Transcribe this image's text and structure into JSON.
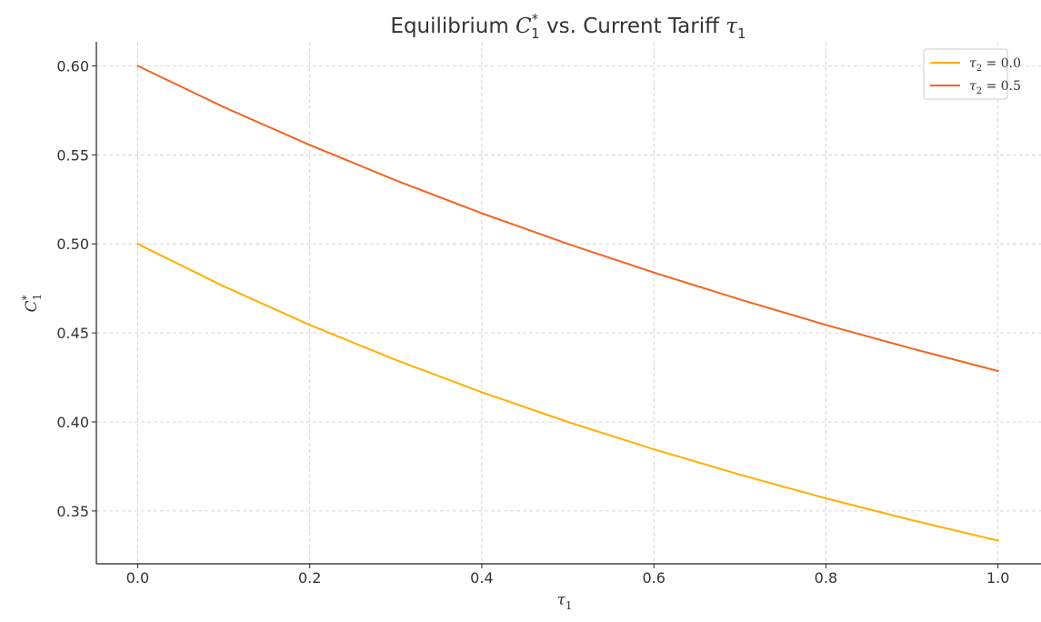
{
  "chart_data": {
    "type": "line",
    "title": {
      "prefix": "Equilibrium ",
      "c_var": "C",
      "c_sup": "*",
      "c_sub": "1",
      "middle": " vs. Current Tariff ",
      "tau_var": "τ",
      "tau_sub": "1"
    },
    "xlabel": {
      "var": "τ",
      "sub": "1"
    },
    "ylabel": {
      "var": "C",
      "sup": "*",
      "sub": "1"
    },
    "xlim": [
      -0.048,
      1.05
    ],
    "ylim": [
      0.3203,
      0.6135
    ],
    "x_ticks": [
      0.0,
      0.2,
      0.4,
      0.6,
      0.8,
      1.0
    ],
    "x_tick_labels": [
      "0.0",
      "0.2",
      "0.4",
      "0.6",
      "0.8",
      "1.0"
    ],
    "y_ticks": [
      0.35,
      0.4,
      0.45,
      0.5,
      0.55,
      0.6
    ],
    "y_tick_labels": [
      "0.35",
      "0.40",
      "0.45",
      "0.50",
      "0.55",
      "0.60"
    ],
    "grid": true,
    "legend_position": "top-right",
    "x": [
      0.0,
      0.1,
      0.2,
      0.3,
      0.4,
      0.5,
      0.6,
      0.7,
      0.8,
      0.9,
      1.0
    ],
    "series": [
      {
        "legend": {
          "var": "τ",
          "sub": "2",
          "rest": " = 0.0"
        },
        "color": "#FFB000",
        "values": [
          0.5,
          0.4762,
          0.4545,
          0.4348,
          0.4167,
          0.4,
          0.3846,
          0.3704,
          0.3571,
          0.3448,
          0.3333
        ]
      },
      {
        "legend": {
          "var": "τ",
          "sub": "2",
          "rest": " = 0.5"
        },
        "color": "#F26522",
        "values": [
          0.6,
          0.5769,
          0.5556,
          0.5357,
          0.5172,
          0.5,
          0.4839,
          0.4688,
          0.4545,
          0.4412,
          0.4286
        ]
      }
    ]
  }
}
